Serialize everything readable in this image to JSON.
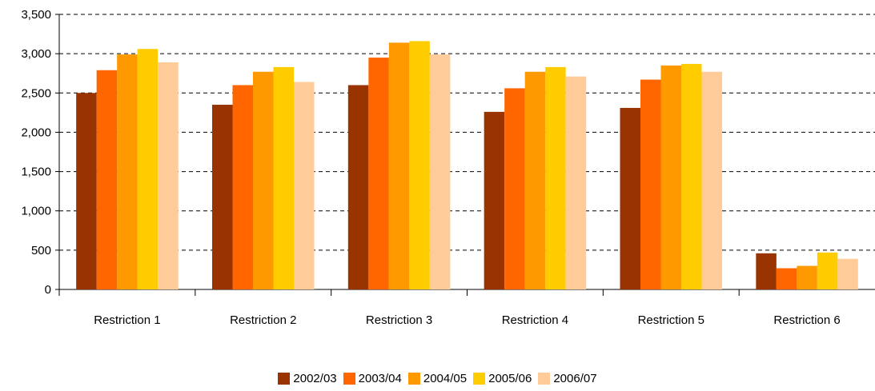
{
  "chart_data": {
    "type": "bar",
    "categories": [
      "Restriction 1",
      "Restriction 2",
      "Restriction 3",
      "Restriction 4",
      "Restriction 5",
      "Restriction 6"
    ],
    "series": [
      {
        "name": "2002/03",
        "color": "#993300",
        "values": [
          2500,
          2350,
          2600,
          2260,
          2310,
          460
        ]
      },
      {
        "name": "2003/04",
        "color": "#FF6600",
        "values": [
          2790,
          2600,
          2950,
          2560,
          2670,
          270
        ]
      },
      {
        "name": "2004/05",
        "color": "#FF9900",
        "values": [
          2990,
          2770,
          3140,
          2770,
          2850,
          300
        ]
      },
      {
        "name": "2005/06",
        "color": "#FFCC00",
        "values": [
          3060,
          2830,
          3160,
          2830,
          2870,
          470
        ]
      },
      {
        "name": "2006/07",
        "color": "#FFCC99",
        "values": [
          2890,
          2640,
          2990,
          2710,
          2770,
          390
        ]
      }
    ],
    "yticks": [
      "0",
      "500",
      "1,000",
      "1,500",
      "2,000",
      "2,500",
      "3,000",
      "3,500"
    ],
    "ylim": [
      0,
      3500
    ],
    "grid": true,
    "legend": "bottom"
  }
}
